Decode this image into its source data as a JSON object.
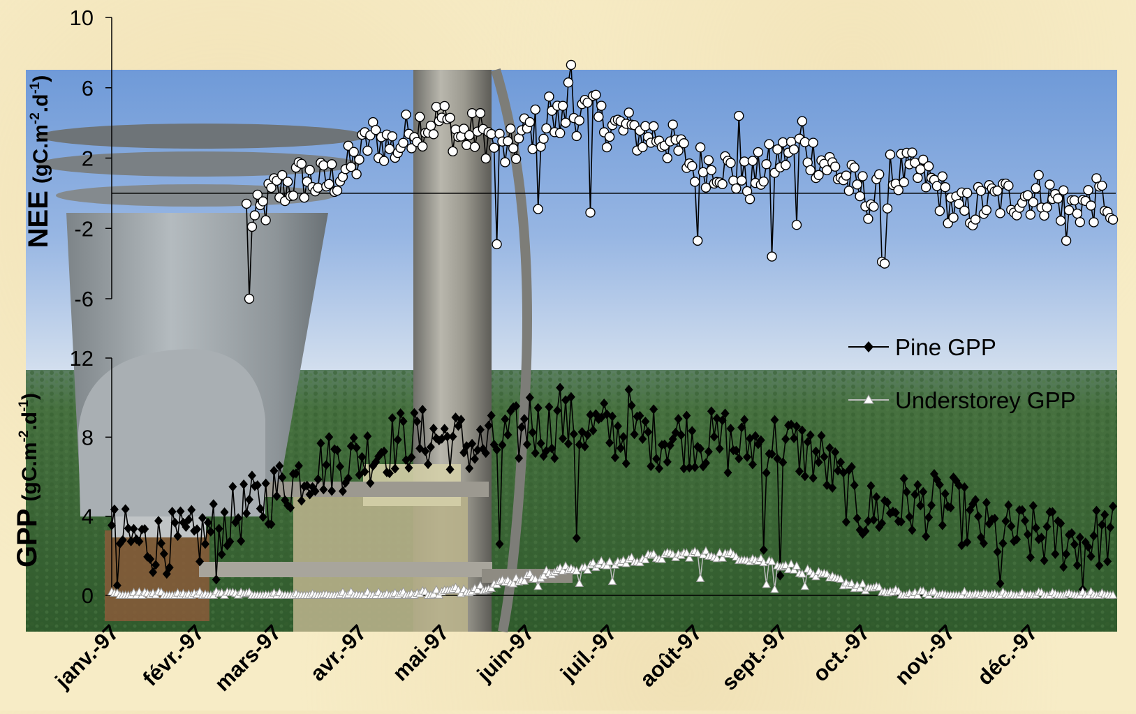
{
  "chart_data": {
    "type": "scatter",
    "x_axis": {
      "tick_labels": [
        "janv.-97",
        "févr.-97",
        "mars-97",
        "avr.-97",
        "mai-97",
        "juin-97",
        "juil.-97",
        "août-97",
        "sept.-97",
        "oct.-97",
        "nov.-97",
        "déc.-97"
      ],
      "tick_dates": [
        "1997-01-01",
        "1997-02-01",
        "1997-03-01",
        "1997-04-01",
        "1997-05-01",
        "1997-06-01",
        "1997-07-01",
        "1997-08-01",
        "1997-09-01",
        "1997-10-01",
        "1997-11-01",
        "1997-12-01"
      ],
      "range": [
        "1997-01-01",
        "1998-01-01"
      ]
    },
    "panels": [
      {
        "id": "nee",
        "ylabel_main": "NEE",
        "ylabel_unit": "(gC.m",
        "ylabel_exp1": "-2",
        "ylabel_mid": ".d",
        "ylabel_exp2": "-1",
        "ylabel_close": ")",
        "ylim": [
          -6,
          10
        ],
        "yticks": [
          -6,
          -2,
          2,
          6,
          10
        ],
        "zero_line": true,
        "series": [
          {
            "marker": "circle-open",
            "color": "#000000",
            "anchors": [
              [
                "1997-02-19",
                -1.0
              ],
              [
                "1997-02-22",
                -1.6
              ],
              [
                "1997-03-01",
                0.0
              ],
              [
                "1997-03-10",
                0.8
              ],
              [
                "1997-03-20",
                0.6
              ],
              [
                "1997-03-31",
                1.8
              ],
              [
                "1997-04-05",
                3.2
              ],
              [
                "1997-04-15",
                2.6
              ],
              [
                "1997-04-20",
                3.8
              ],
              [
                "1997-05-01",
                4.2
              ],
              [
                "1997-05-08",
                3.2
              ],
              [
                "1997-05-15",
                3.5
              ],
              [
                "1997-05-25",
                2.2
              ],
              [
                "1997-06-01",
                3.5
              ],
              [
                "1997-06-10",
                3.9
              ],
              [
                "1997-06-20",
                4.6
              ],
              [
                "1997-06-30",
                3.9
              ],
              [
                "1997-07-10",
                3.4
              ],
              [
                "1997-07-20",
                3.3
              ],
              [
                "1997-07-31",
                1.6
              ],
              [
                "1997-08-10",
                1.6
              ],
              [
                "1997-08-20",
                0.6
              ],
              [
                "1997-08-30",
                1.8
              ],
              [
                "1997-09-08",
                2.6
              ],
              [
                "1997-09-15",
                2.0
              ],
              [
                "1997-09-22",
                1.2
              ],
              [
                "1997-09-29",
                0.2
              ],
              [
                "1997-10-05",
                -0.5
              ],
              [
                "1997-10-15",
                1.2
              ],
              [
                "1997-10-25",
                0.8
              ],
              [
                "1997-11-05",
                -1.2
              ],
              [
                "1997-11-15",
                -0.5
              ],
              [
                "1997-11-25",
                -0.2
              ],
              [
                "1997-12-05",
                0.0
              ],
              [
                "1997-12-15",
                -0.8
              ],
              [
                "1997-12-31",
                -0.2
              ]
            ],
            "noise": 1.3,
            "start": "1997-02-19",
            "end": "1997-12-31",
            "highlights": [
              [
                "1997-02-20",
                -6.2
              ],
              [
                "1997-06-17",
                7.3
              ],
              [
                "1997-06-16",
                6.3
              ],
              [
                "1997-06-26",
                5.6
              ],
              [
                "1997-06-09",
                5.5
              ],
              [
                "1997-05-21",
                -2.9
              ],
              [
                "1997-06-05",
                -0.9
              ],
              [
                "1997-07-09",
                3.9
              ],
              [
                "1997-08-02",
                -2.7
              ],
              [
                "1997-08-29",
                -3.6
              ],
              [
                "1997-10-08",
                -3.9
              ],
              [
                "1997-10-09",
                -4.0
              ],
              [
                "1997-09-09",
                4.1
              ],
              [
                "1997-09-07",
                -1.8
              ],
              [
                "1997-10-11",
                2.2
              ],
              [
                "1997-08-17",
                4.4
              ],
              [
                "1997-12-14",
                -2.7
              ],
              [
                "1997-12-30",
                -1.4
              ],
              [
                "1997-12-31",
                -1.5
              ],
              [
                "1997-06-24",
                -1.1
              ]
            ]
          }
        ]
      },
      {
        "id": "gpp",
        "ylabel_main": "GPP",
        "ylabel_unit": "(gC.m",
        "ylabel_exp1": "-2",
        "ylabel_mid": ".d",
        "ylabel_exp2": "-1",
        "ylabel_close": ")",
        "ylim": [
          0,
          12
        ],
        "yticks": [
          0,
          4,
          8,
          12
        ],
        "series": [
          {
            "name": "Pine GPP",
            "marker": "diamond-filled",
            "color": "#000000",
            "anchors": [
              [
                "1997-01-01",
                3.0
              ],
              [
                "1997-01-15",
                2.6
              ],
              [
                "1997-02-01",
                2.8
              ],
              [
                "1997-02-15",
                4.0
              ],
              [
                "1997-03-01",
                5.2
              ],
              [
                "1997-03-15",
                6.5
              ],
              [
                "1997-04-01",
                7.0
              ],
              [
                "1997-04-15",
                7.8
              ],
              [
                "1997-05-01",
                8.0
              ],
              [
                "1997-05-15",
                7.4
              ],
              [
                "1997-06-01",
                8.3
              ],
              [
                "1997-06-15",
                8.6
              ],
              [
                "1997-07-01",
                8.3
              ],
              [
                "1997-07-15",
                8.0
              ],
              [
                "1997-08-01",
                8.0
              ],
              [
                "1997-08-15",
                7.5
              ],
              [
                "1997-09-01",
                7.8
              ],
              [
                "1997-09-15",
                7.0
              ],
              [
                "1997-10-01",
                4.2
              ],
              [
                "1997-10-15",
                4.5
              ],
              [
                "1997-11-01",
                4.6
              ],
              [
                "1997-11-15",
                3.2
              ],
              [
                "1997-12-01",
                3.0
              ],
              [
                "1997-12-15",
                2.8
              ],
              [
                "1997-12-31",
                3.0
              ]
            ],
            "noise": 1.6,
            "start": "1997-01-01",
            "end": "1997-12-31",
            "highlights": [
              [
                "1997-06-13",
                10.5
              ],
              [
                "1997-07-08",
                10.4
              ],
              [
                "1997-06-02",
                10.0
              ],
              [
                "1997-08-12",
                9.2
              ],
              [
                "1997-01-03",
                0.5
              ],
              [
                "1997-02-08",
                0.8
              ],
              [
                "1997-05-22",
                2.6
              ],
              [
                "1997-06-19",
                2.9
              ],
              [
                "1997-08-26",
                2.3
              ],
              [
                "1997-11-20",
                0.6
              ],
              [
                "1997-12-31",
                4.5
              ],
              [
                "1997-09-01",
                1.0
              ],
              [
                "1997-12-20",
                0.3
              ]
            ]
          },
          {
            "name": "Understorey GPP",
            "marker": "triangle-open",
            "color": "#ffffff",
            "anchors": [
              [
                "1997-01-01",
                0.0
              ],
              [
                "1997-04-15",
                0.0
              ],
              [
                "1997-05-01",
                0.15
              ],
              [
                "1997-05-15",
                0.4
              ],
              [
                "1997-06-01",
                0.9
              ],
              [
                "1997-06-15",
                1.3
              ],
              [
                "1997-07-01",
                1.6
              ],
              [
                "1997-07-15",
                1.9
              ],
              [
                "1997-08-01",
                2.1
              ],
              [
                "1997-08-15",
                2.0
              ],
              [
                "1997-09-01",
                1.6
              ],
              [
                "1997-09-15",
                1.0
              ],
              [
                "1997-10-01",
                0.4
              ],
              [
                "1997-10-15",
                0.05
              ],
              [
                "1997-11-01",
                0.0
              ],
              [
                "1997-12-31",
                0.0
              ]
            ],
            "noise": 0.2,
            "start": "1997-01-01",
            "end": "1997-12-31",
            "highlights": [
              [
                "1997-06-05",
                0.45
              ],
              [
                "1997-06-20",
                0.6
              ],
              [
                "1997-07-02",
                0.7
              ],
              [
                "1997-08-03",
                0.85
              ],
              [
                "1997-08-27",
                0.55
              ],
              [
                "1997-08-30",
                0.3
              ],
              [
                "1997-09-10",
                0.45
              ]
            ]
          }
        ]
      }
    ],
    "legend": [
      "Pine GPP",
      "Understorey GPP"
    ],
    "legend_position": "right, between panels"
  },
  "colors": {
    "background": "#f7ecc6",
    "sky_top": "#6f9ad8",
    "sky_bottom": "#c9d9ee",
    "forest": "#3f6a3a",
    "pine_marker": "#000000",
    "understorey_marker": "#ffffff",
    "nee_marker_fill": "#ffffff"
  }
}
